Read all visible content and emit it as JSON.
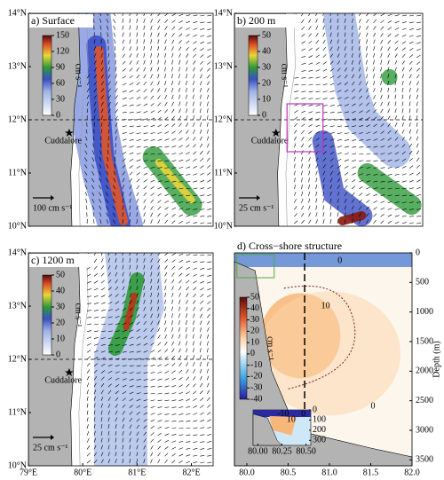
{
  "map_axes": {
    "xlim": [
      79,
      82.4
    ],
    "ylim": [
      10,
      14
    ],
    "lat_ticks": [
      {
        "value": 14,
        "label": "14°N"
      },
      {
        "value": 13,
        "label": "13°N"
      },
      {
        "value": 12,
        "label": "12°N"
      },
      {
        "value": 11,
        "label": "11°N"
      },
      {
        "value": 10,
        "label": "10°N"
      }
    ],
    "lon_ticks": [
      {
        "value": 79,
        "label": "79°E"
      },
      {
        "value": 80,
        "label": "80°E"
      },
      {
        "value": 81,
        "label": "81°E"
      },
      {
        "value": 82,
        "label": "82°E"
      }
    ]
  },
  "panels": [
    {
      "title": "a) Surface",
      "colorbar_ticks": [
        0,
        30,
        60,
        90,
        120,
        150
      ],
      "unit": "cm s⁻¹",
      "scale_label": "100 cm s⁻¹",
      "place": "Cuddalore"
    },
    {
      "title": "b) 200 m",
      "colorbar_ticks": [
        0,
        10,
        20,
        30,
        40,
        50
      ],
      "unit": "cm s⁻¹",
      "scale_label": "25 cm s⁻¹",
      "place": "Cuddalore"
    },
    {
      "title": "c) 1200 m",
      "colorbar_ticks": [
        0,
        10,
        20,
        30,
        40,
        50
      ],
      "unit": "cm s⁻¹",
      "scale_label": "25 cm s⁻¹",
      "place": "Cuddalore"
    }
  ],
  "cross_shore": {
    "title": "d) Cross−shore structure",
    "xlim": [
      79.85,
      82
    ],
    "ylim": [
      0,
      3600
    ],
    "xticks": [
      {
        "value": 80,
        "label": "80.0"
      },
      {
        "value": 80.5,
        "label": "80.5"
      },
      {
        "value": 81,
        "label": "81.0"
      },
      {
        "value": 81.5,
        "label": "81.5"
      },
      {
        "value": 82,
        "label": "82.0"
      }
    ],
    "yticks": [
      0,
      500,
      1000,
      1500,
      2000,
      2500,
      3000,
      3500
    ],
    "ylabel": "Depth (m)",
    "unit": "cm s⁻¹",
    "colorbar_ticks": [
      50,
      40,
      30,
      20,
      10,
      0,
      -10,
      -20,
      -30,
      -40
    ],
    "contour_labels": [
      "0",
      "10",
      "0"
    ],
    "inset": {
      "xticks": [
        {
          "value": 80,
          "label": "80.00"
        },
        {
          "value": 80.25,
          "label": "80.25"
        },
        {
          "value": 80.5,
          "label": "80.50"
        }
      ],
      "yticks": [
        0,
        100,
        200,
        300
      ],
      "contour_labels": [
        "-10",
        "10",
        "0"
      ]
    }
  }
}
